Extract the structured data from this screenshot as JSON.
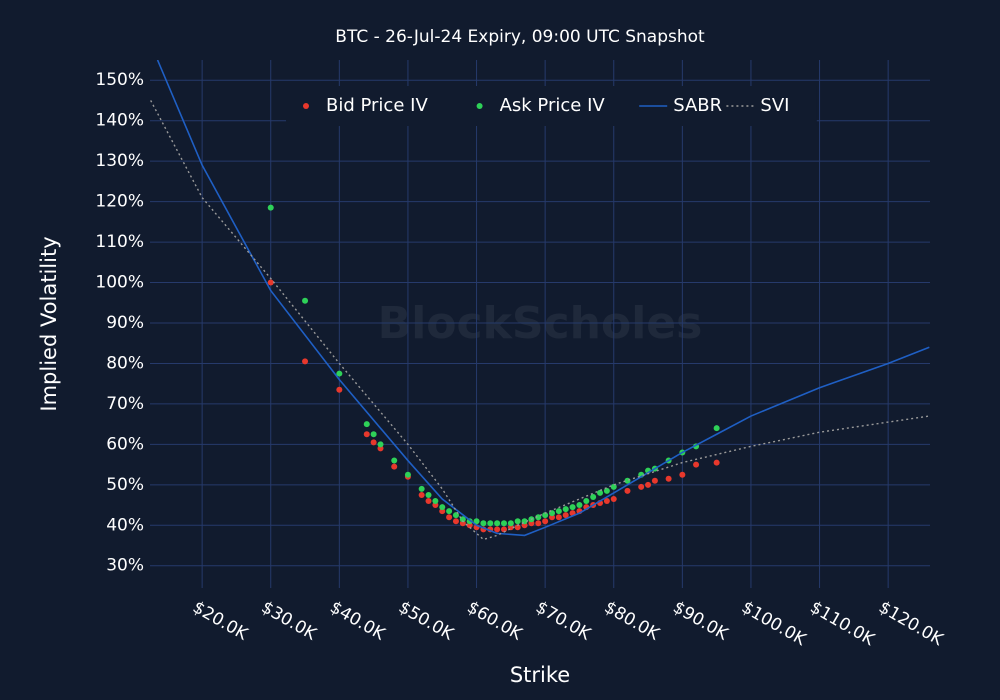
{
  "chart_data": {
    "type": "scatter",
    "title": "BTC - 26-Jul-24 Expiry, 09:00 UTC Snapshot",
    "watermark": "BlockScholes",
    "xlabel": "Strike",
    "ylabel": "Implied Volatility",
    "xlim": [
      12400,
      126100
    ],
    "ylim": [
      24.5,
      155
    ],
    "xticks": [
      {
        "value": 20000,
        "label": "$20.0K"
      },
      {
        "value": 30000,
        "label": "$30.0K"
      },
      {
        "value": 40000,
        "label": "$40.0K"
      },
      {
        "value": 50000,
        "label": "$50.0K"
      },
      {
        "value": 60000,
        "label": "$60.0K"
      },
      {
        "value": 70000,
        "label": "$70.0K"
      },
      {
        "value": 80000,
        "label": "$80.0K"
      },
      {
        "value": 90000,
        "label": "$90.0K"
      },
      {
        "value": 100000,
        "label": "$100.0K"
      },
      {
        "value": 110000,
        "label": "$110.0K"
      },
      {
        "value": 120000,
        "label": "$120.0K"
      }
    ],
    "yticks": [
      {
        "value": 30,
        "label": "30%"
      },
      {
        "value": 40,
        "label": "40%"
      },
      {
        "value": 50,
        "label": "50%"
      },
      {
        "value": 60,
        "label": "60%"
      },
      {
        "value": 70,
        "label": "70%"
      },
      {
        "value": 80,
        "label": "80%"
      },
      {
        "value": 90,
        "label": "90%"
      },
      {
        "value": 100,
        "label": "100%"
      },
      {
        "value": 110,
        "label": "110%"
      },
      {
        "value": 120,
        "label": "120%"
      },
      {
        "value": 130,
        "label": "130%"
      },
      {
        "value": 140,
        "label": "140%"
      },
      {
        "value": 150,
        "label": "150%"
      }
    ],
    "grid": true,
    "legend": "top",
    "series": [
      {
        "name": "Bid Price IV",
        "kind": "markers",
        "color": "#e8382c",
        "x": [
          30000,
          35000,
          40000,
          44000,
          45000,
          46000,
          48000,
          50000,
          52000,
          53000,
          54000,
          55000,
          56000,
          57000,
          58000,
          59000,
          60000,
          61000,
          62000,
          63000,
          64000,
          65000,
          66000,
          67000,
          68000,
          69000,
          70000,
          71000,
          72000,
          73000,
          74000,
          75000,
          76000,
          77000,
          78000,
          79000,
          80000,
          82000,
          84000,
          85000,
          86000,
          88000,
          90000,
          92000,
          95000
        ],
        "values": [
          100,
          80.5,
          73.5,
          62.5,
          60.5,
          59,
          54.5,
          52,
          47.5,
          46,
          45,
          43.5,
          42,
          41,
          40.5,
          40,
          39.5,
          39,
          39,
          39,
          39,
          39.5,
          39.5,
          40,
          40.5,
          40.5,
          41,
          42,
          42,
          42.5,
          43,
          43.5,
          44.5,
          45,
          45.5,
          46,
          46.5,
          48.5,
          49.5,
          50,
          51,
          51.5,
          52.5,
          55,
          55.5
        ]
      },
      {
        "name": "Ask Price IV",
        "kind": "markers",
        "color": "#2ed158",
        "x": [
          30000,
          35000,
          40000,
          44000,
          45000,
          46000,
          48000,
          50000,
          52000,
          53000,
          54000,
          55000,
          56000,
          57000,
          58000,
          59000,
          60000,
          61000,
          62000,
          63000,
          64000,
          65000,
          66000,
          67000,
          68000,
          69000,
          70000,
          71000,
          72000,
          73000,
          74000,
          75000,
          76000,
          77000,
          78000,
          79000,
          80000,
          82000,
          84000,
          85000,
          86000,
          88000,
          90000,
          92000,
          95000
        ],
        "values": [
          118.5,
          95.5,
          77.5,
          65,
          62.5,
          60,
          56,
          52.5,
          49,
          47.5,
          46,
          44.5,
          43.5,
          42.5,
          41.5,
          41,
          41,
          40.5,
          40.5,
          40.5,
          40.5,
          40.5,
          41,
          41,
          41.5,
          42,
          42.5,
          43,
          43.5,
          44,
          44.5,
          45,
          46,
          47,
          48,
          48.5,
          49.5,
          51,
          52.5,
          53.5,
          54,
          56,
          58,
          59.5,
          64
        ]
      },
      {
        "name": "SABR",
        "kind": "line",
        "color": "#1f5fc4",
        "x": [
          13500,
          20000,
          30000,
          40000,
          50000,
          55000,
          60000,
          63000,
          67000,
          70000,
          75000,
          80000,
          85000,
          90000,
          95000,
          100000,
          110000,
          120000,
          126000
        ],
        "values": [
          155,
          129,
          98,
          76,
          56,
          46.5,
          40,
          38,
          37.5,
          39.5,
          43,
          48,
          53,
          58,
          62.5,
          67,
          74,
          80,
          84
        ]
      },
      {
        "name": "SVI",
        "kind": "dotted",
        "color": "#9a9a9a",
        "x": [
          12500,
          20000,
          30000,
          40000,
          50000,
          55000,
          58000,
          61000,
          63000,
          66000,
          70000,
          75000,
          80000,
          90000,
          100000,
          110000,
          120000,
          126000
        ],
        "values": [
          145,
          121,
          101,
          80,
          60,
          49,
          41,
          36.5,
          37.5,
          40,
          43,
          46.5,
          50,
          55.5,
          59.5,
          63,
          65.5,
          67
        ]
      }
    ]
  }
}
